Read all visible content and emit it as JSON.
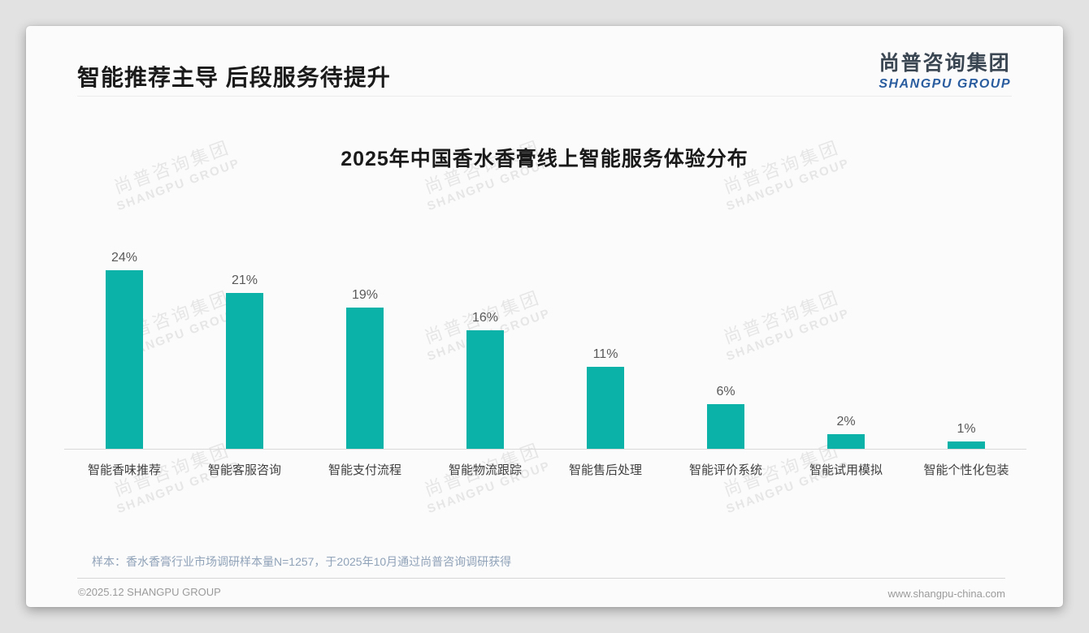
{
  "page": {
    "title": "智能推荐主导 后段服务待提升"
  },
  "logo": {
    "cn": "尚普咨询集团",
    "en": "SHANGPU GROUP"
  },
  "watermark": {
    "cn": "尚普咨询集团",
    "en": "SHANGPU GROUP"
  },
  "chart_data": {
    "type": "bar",
    "title": "2025年中国香水香膏线上智能服务体验分布",
    "categories": [
      "智能香味推荐",
      "智能客服咨询",
      "智能支付流程",
      "智能物流跟踪",
      "智能售后处理",
      "智能评价系统",
      "智能试用模拟",
      "智能个性化包装"
    ],
    "values": [
      24,
      21,
      19,
      16,
      11,
      6,
      2,
      1
    ],
    "value_suffix": "%",
    "value_labels": true,
    "y_axis_visible": false,
    "grid": false,
    "legend": null,
    "bar_color": "#0ab2a8"
  },
  "footnote": "样本：香水香膏行业市场调研样本量N=1257，于2025年10月通过尚普咨询调研获得",
  "footer": {
    "left": "©2025.12 SHANGPU GROUP",
    "right": "www.shangpu-china.com"
  },
  "colors": {
    "bar": "#0ab2a8",
    "logo_dark": "#3b4653",
    "logo_blue": "#2a5d9f",
    "card_bg": "#fbfbfb",
    "page_bg": "#e2e2e2"
  }
}
